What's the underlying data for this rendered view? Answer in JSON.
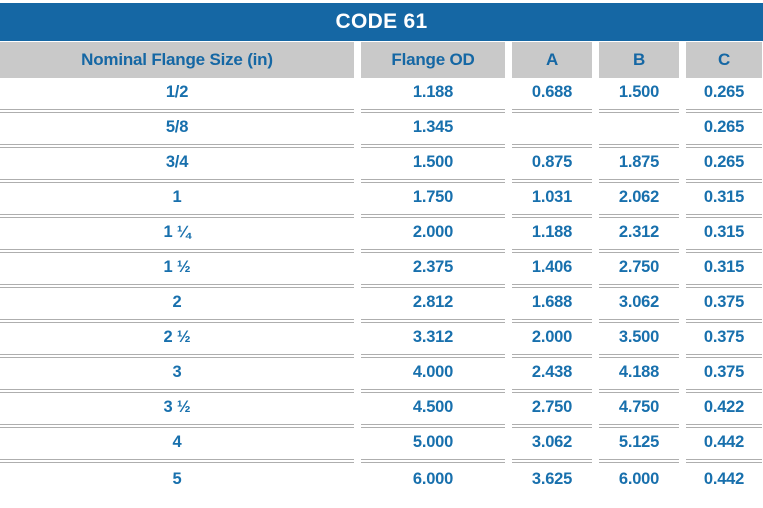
{
  "title": "CODE 61",
  "colors": {
    "title_bar_blue": "#1567a4",
    "header_gray": "#c9c9c9",
    "text_blue": "#1870ad",
    "separator_gray": "#aeaeae",
    "background": "#ffffff"
  },
  "chart_data": {
    "type": "table",
    "title": "CODE 61",
    "columns": [
      "Nominal Flange Size (in)",
      "Flange OD",
      "A",
      "B",
      "C"
    ],
    "rows": [
      [
        "1/2",
        "1.188",
        "0.688",
        "1.500",
        "0.265"
      ],
      [
        "5/8",
        "1.345",
        "",
        "",
        "0.265"
      ],
      [
        "3/4",
        "1.500",
        "0.875",
        "1.875",
        "0.265"
      ],
      [
        "1",
        "1.750",
        "1.031",
        "2.062",
        "0.315"
      ],
      [
        "1 ¼",
        "2.000",
        "1.188",
        "2.312",
        "0.315"
      ],
      [
        "1 ½",
        "2.375",
        "1.406",
        "2.750",
        "0.315"
      ],
      [
        "2",
        "2.812",
        "1.688",
        "3.062",
        "0.375"
      ],
      [
        "2 ½",
        "3.312",
        "2.000",
        "3.500",
        "0.375"
      ],
      [
        "3",
        "4.000",
        "2.438",
        "4.188",
        "0.375"
      ],
      [
        "3 ½",
        "4.500",
        "2.750",
        "4.750",
        "0.422"
      ],
      [
        "4",
        "5.000",
        "3.062",
        "5.125",
        "0.442"
      ],
      [
        "5",
        "6.000",
        "3.625",
        "6.000",
        "0.442"
      ]
    ]
  }
}
